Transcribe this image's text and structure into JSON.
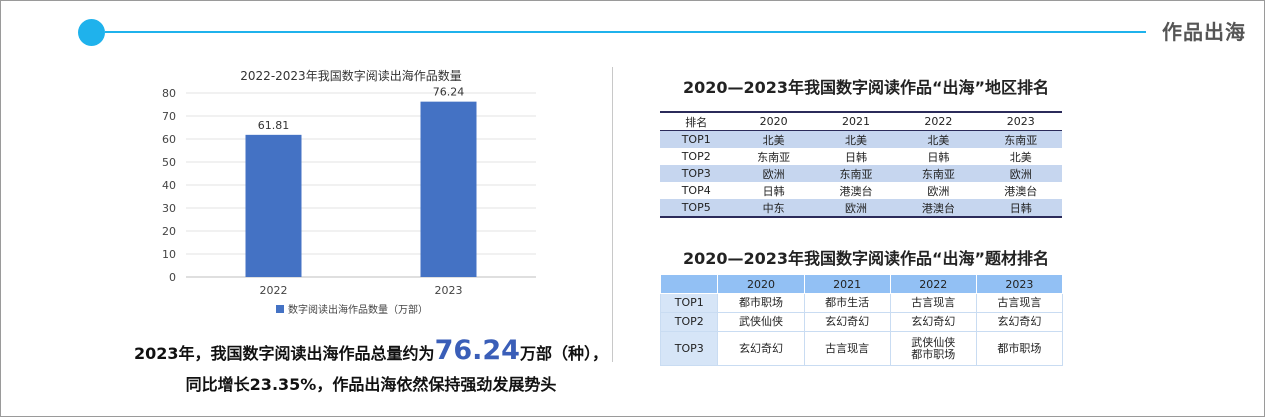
{
  "header": {
    "title": "作品出海"
  },
  "chart_data": {
    "type": "bar",
    "title": "2022-2023年我国数字阅读出海作品数量",
    "categories": [
      "2022",
      "2023"
    ],
    "series": [
      {
        "name": "数字阅读出海作品数量（万部）",
        "values": [
          61.81,
          76.24
        ],
        "color": "#4472c4"
      }
    ],
    "data_labels": [
      "61.81",
      "76.24"
    ],
    "ylim": [
      0,
      80
    ],
    "yticks": [
      "0",
      "10",
      "20",
      "30",
      "40",
      "50",
      "60",
      "70",
      "80"
    ],
    "grid": true,
    "legend": "bottom"
  },
  "summary": {
    "line1_prefix": "2023年，我国数字阅读出海作品总量约为",
    "line1_number": "76.24",
    "line1_suffix": "万部（种），",
    "line2": "同比增长23.35%，作品出海依然保持强劲发展势头"
  },
  "region_table": {
    "title": "2020—2023年我国数字阅读作品“出海”地区排名",
    "headers": [
      "排名",
      "2020",
      "2021",
      "2022",
      "2023"
    ],
    "rows": [
      [
        "TOP1",
        "北美",
        "北美",
        "北美",
        "东南亚"
      ],
      [
        "TOP2",
        "东南亚",
        "日韩",
        "日韩",
        "北美"
      ],
      [
        "TOP3",
        "欧洲",
        "东南亚",
        "东南亚",
        "欧洲"
      ],
      [
        "TOP4",
        "日韩",
        "港澳台",
        "欧洲",
        "港澳台"
      ],
      [
        "TOP5",
        "中东",
        "欧洲",
        "港澳台",
        "日韩"
      ]
    ]
  },
  "theme_table": {
    "title": "2020—2023年我国数字阅读作品“出海”题材排名",
    "headers": [
      "",
      "2020",
      "2021",
      "2022",
      "2023"
    ],
    "rows": [
      [
        "TOP1",
        "都市职场",
        "都市生活",
        "古言现言",
        "古言现言"
      ],
      [
        "TOP2",
        "武侠仙侠",
        "玄幻奇幻",
        "玄幻奇幻",
        "玄幻奇幻"
      ],
      [
        "TOP3",
        "玄幻奇幻",
        "古言现言",
        "武侠仙侠\n都市职场",
        "都市职场"
      ]
    ]
  }
}
